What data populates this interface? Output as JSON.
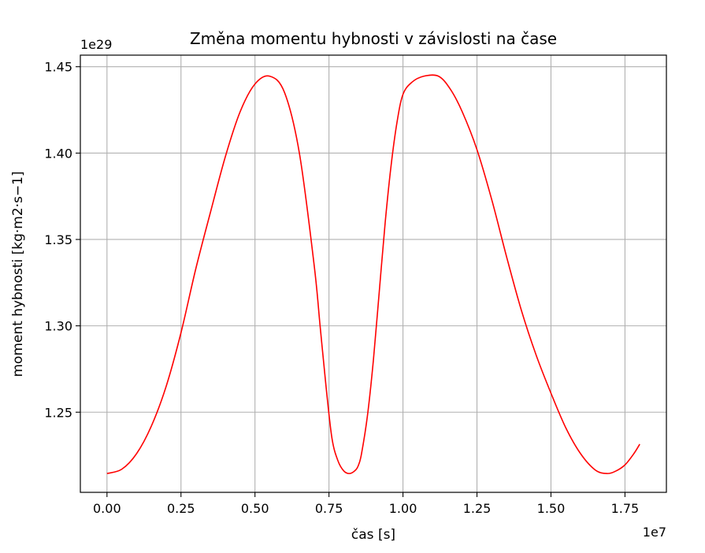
{
  "chart_data": {
    "type": "line",
    "title": "Změna momentu hybnosti v závislosti na čase",
    "xlabel": "čas [s]",
    "ylabel": "moment hybnosti [kg·m2·s−1]",
    "x_offset_label": "1e7",
    "y_offset_label": "1e29",
    "xlim": [
      -0.09,
      1.89
    ],
    "ylim": [
      1.2036,
      1.4567
    ],
    "x_ticks": [
      0.0,
      0.25,
      0.5,
      0.75,
      1.0,
      1.25,
      1.5,
      1.75
    ],
    "x_tick_labels": [
      "0.00",
      "0.25",
      "0.50",
      "0.75",
      "1.00",
      "1.25",
      "1.50",
      "1.75"
    ],
    "y_ticks": [
      1.25,
      1.3,
      1.35,
      1.4,
      1.45
    ],
    "y_tick_labels": [
      "1.25",
      "1.30",
      "1.35",
      "1.40",
      "1.45"
    ],
    "grid": true,
    "series": [
      {
        "color": "#ff0000",
        "x": [
          0.0,
          0.05,
          0.1,
          0.15,
          0.2,
          0.25,
          0.3,
          0.35,
          0.4,
          0.45,
          0.5,
          0.55,
          0.6,
          0.65,
          0.7,
          0.72,
          0.74,
          0.76,
          0.78,
          0.8,
          0.82,
          0.84,
          0.85,
          0.86,
          0.88,
          0.9,
          0.92,
          0.94,
          0.96,
          0.98,
          1.0,
          1.03,
          1.07,
          1.12,
          1.16,
          1.2,
          1.25,
          1.3,
          1.35,
          1.4,
          1.45,
          1.5,
          1.55,
          1.6,
          1.65,
          1.69,
          1.72,
          1.75,
          1.78,
          1.8
        ],
        "y": [
          1.2145,
          1.217,
          1.226,
          1.242,
          1.265,
          1.296,
          1.333,
          1.366,
          1.398,
          1.424,
          1.44,
          1.4445,
          1.435,
          1.4,
          1.335,
          1.3,
          1.265,
          1.235,
          1.222,
          1.216,
          1.2145,
          1.2165,
          1.2195,
          1.226,
          1.248,
          1.28,
          1.32,
          1.36,
          1.393,
          1.418,
          1.434,
          1.441,
          1.4445,
          1.4445,
          1.437,
          1.424,
          1.402,
          1.373,
          1.34,
          1.309,
          1.283,
          1.261,
          1.241,
          1.226,
          1.2165,
          1.2145,
          1.216,
          1.2195,
          1.226,
          1.2315
        ]
      }
    ]
  }
}
